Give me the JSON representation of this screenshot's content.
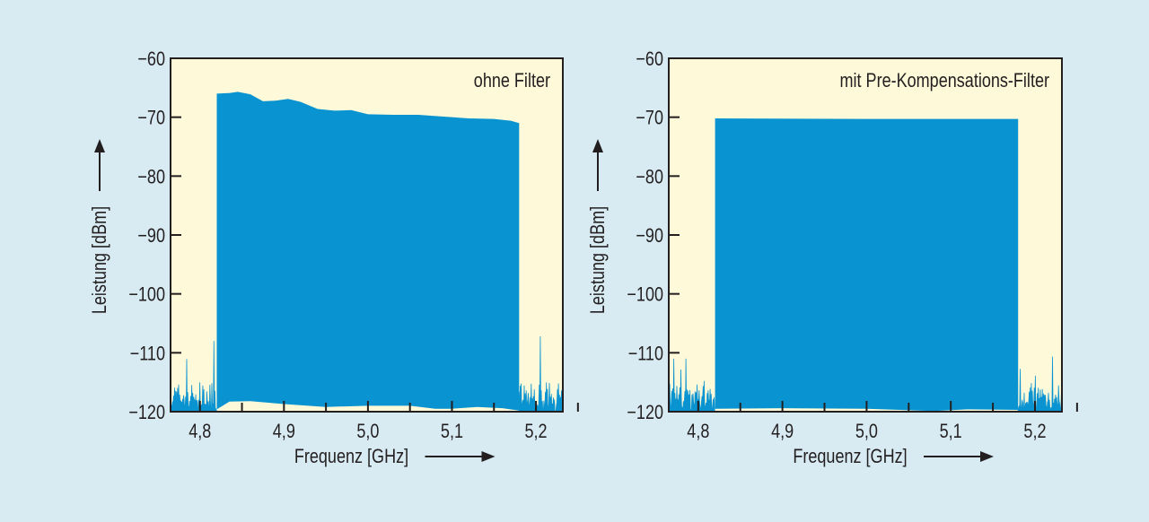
{
  "chart_data": [
    {
      "type": "area",
      "title": "ohne Filter",
      "xlabel": "Frequenz [GHz]",
      "ylabel": "Leistung [dBm]",
      "xlim": [
        4.765,
        5.232
      ],
      "ylim": [
        -120,
        -60
      ],
      "xticks": [
        4.8,
        4.9,
        5.0,
        5.1,
        5.2
      ],
      "xtick_labels": [
        "4,8",
        "4,9",
        "5,0",
        "5,1",
        "5,2"
      ],
      "yticks": [
        -60,
        -70,
        -80,
        -90,
        -100,
        -110,
        -120
      ],
      "ytick_labels": [
        "−60",
        "−70",
        "−80",
        "−90",
        "−100",
        "−110",
        "−120"
      ],
      "band_upper": {
        "x": [
          4.82,
          4.835,
          4.845,
          4.86,
          4.875,
          4.89,
          4.905,
          4.92,
          4.94,
          4.96,
          4.98,
          5.0,
          5.03,
          5.06,
          5.09,
          5.12,
          5.15,
          5.17,
          5.18
        ],
        "y": [
          -66.0,
          -65.9,
          -65.7,
          -66.1,
          -67.3,
          -67.2,
          -66.9,
          -67.4,
          -68.6,
          -68.9,
          -68.8,
          -69.5,
          -69.6,
          -69.6,
          -69.9,
          -70.2,
          -70.3,
          -70.6,
          -71.0
        ]
      },
      "band_lower": {
        "x": [
          4.82,
          4.835,
          4.86,
          4.9,
          4.95,
          5.0,
          5.05,
          5.08,
          5.1,
          5.13,
          5.16,
          5.18
        ],
        "y": [
          -119.6,
          -118.3,
          -118.2,
          -118.7,
          -119.2,
          -119.0,
          -119.0,
          -119.5,
          -119.5,
          -119.2,
          -119.4,
          -119.8
        ]
      },
      "noise_left_range": [
        4.765,
        4.82
      ],
      "noise_right_range": [
        5.18,
        5.232
      ],
      "noise_peak_dBm": -108
    },
    {
      "type": "area",
      "title": "mit Pre-Kompensations-Filter",
      "xlabel": "Frequenz [GHz]",
      "ylabel": "Leistung [dBm]",
      "xlim": [
        4.765,
        5.232
      ],
      "ylim": [
        -120,
        -60
      ],
      "xticks": [
        4.8,
        4.9,
        5.0,
        5.1,
        5.2
      ],
      "xtick_labels": [
        "4,8",
        "4,9",
        "5,0",
        "5,1",
        "5,2"
      ],
      "yticks": [
        -60,
        -70,
        -80,
        -90,
        -100,
        -110,
        -120
      ],
      "ytick_labels": [
        "−60",
        "−70",
        "−80",
        "−90",
        "−100",
        "−110",
        "−120"
      ],
      "band_upper": {
        "x": [
          4.82,
          5.0,
          5.18
        ],
        "y": [
          -70.2,
          -70.3,
          -70.3
        ]
      },
      "band_lower": {
        "x": [
          4.82,
          4.9,
          5.0,
          5.08,
          5.12,
          5.18
        ],
        "y": [
          -119.5,
          -119.4,
          -119.5,
          -119.9,
          -119.6,
          -119.7
        ]
      },
      "noise_left_range": [
        4.765,
        4.82
      ],
      "noise_right_range": [
        5.18,
        5.232
      ],
      "noise_peak_dBm": -111
    }
  ],
  "colors": {
    "background": "#d8ebf3",
    "plot": "#fdf9d9",
    "signal": "#0a93d1",
    "text": "#231f20"
  }
}
